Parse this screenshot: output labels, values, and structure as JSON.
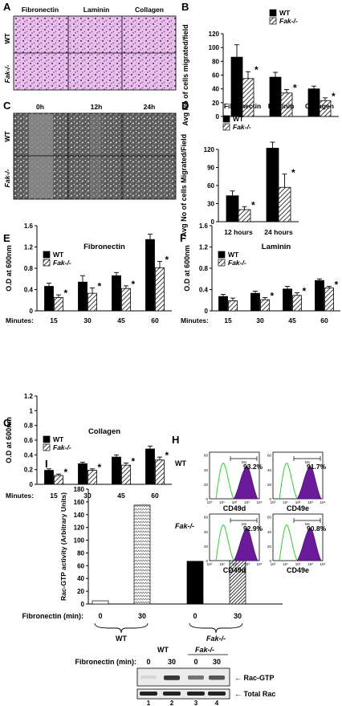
{
  "colors": {
    "wt": "#000000",
    "fak": "hatched",
    "transwell_stain": "#c77fd0",
    "flow_isotype": "#33cc33",
    "flow_stained": "#6a1a9a",
    "blot_bg": "#e8e8e8"
  },
  "panels": {
    "A": {
      "letter": "A",
      "columns": [
        "Fibronectin",
        "Laminin",
        "Collagen"
      ],
      "rows": [
        "WT",
        "Fak-/-"
      ]
    },
    "C": {
      "letter": "C",
      "columns": [
        "0h",
        "12h",
        "24h"
      ],
      "rows": [
        "WT",
        "Fak-/-"
      ]
    },
    "H": {
      "letter": "H",
      "rows": [
        "WT",
        "Fak-/-"
      ],
      "histograms": [
        {
          "pct": "93.2%",
          "marker": "CD49d",
          "gate": "M1"
        },
        {
          "pct": "91.7%",
          "marker": "CD49e",
          "gate": "M1"
        },
        {
          "pct": "92.9%",
          "marker": "CD49d",
          "gate": "M1"
        },
        {
          "pct": "90.8%",
          "marker": "CD49e",
          "gate": "M1"
        }
      ],
      "ticks_x": [
        "10⁰",
        "10¹",
        "10²",
        "10³",
        "10⁴"
      ],
      "ticks_y": [
        "0",
        "20",
        "40",
        "60"
      ]
    },
    "I_blot": {
      "fn_label": "Fibronectin (min):",
      "groups": [
        "WT",
        "Fak-/-"
      ],
      "times": [
        "0",
        "30",
        "0",
        "30"
      ],
      "lanes": [
        "1",
        "2",
        "3",
        "4"
      ],
      "bands": [
        "← Rac-GTP",
        "← Total Rac"
      ],
      "rac_gtp_intensity": [
        0.05,
        0.85,
        0.55,
        0.7
      ],
      "total_rac_intensity": [
        0.95,
        0.95,
        0.95,
        0.95
      ]
    }
  },
  "chart_data": [
    {
      "id": "B",
      "letter": "B",
      "type": "bar",
      "title": "",
      "ylabel": "Avg No of cells migrated/field",
      "categories": [
        "Fibronectin",
        "Laminin",
        "Collagen"
      ],
      "series": [
        {
          "name": "WT",
          "values": [
            86,
            57,
            40
          ],
          "errors": [
            18,
            7,
            4
          ]
        },
        {
          "name": "Fak-/-",
          "values": [
            55,
            34,
            23
          ],
          "errors": [
            10,
            5,
            4
          ]
        }
      ],
      "sig": [
        true,
        true,
        true
      ],
      "ylim": [
        0,
        120
      ],
      "yticks": [
        0,
        20,
        40,
        60,
        80,
        100,
        120
      ],
      "xprefix": "",
      "legend": "top-right"
    },
    {
      "id": "D",
      "letter": "D",
      "type": "bar",
      "title": "",
      "ylabel": "Avg No of cells Migrated/Field",
      "categories": [
        "12 hours",
        "24 hours"
      ],
      "series": [
        {
          "name": "WT",
          "values": [
            43,
            122
          ],
          "errors": [
            8,
            10
          ]
        },
        {
          "name": "Fak-/-",
          "values": [
            20,
            57
          ],
          "errors": [
            5,
            22
          ]
        }
      ],
      "sig": [
        true,
        true
      ],
      "ylim": [
        0,
        120
      ],
      "yticks": [
        0,
        30,
        60,
        90,
        120
      ],
      "xprefix": "",
      "legend": "top-left"
    },
    {
      "id": "E",
      "letter": "E",
      "type": "bar",
      "title": "Fibronectin",
      "ylabel": "O.D at 600nm",
      "categories": [
        "15",
        "30",
        "45",
        "60"
      ],
      "series": [
        {
          "name": "WT",
          "values": [
            0.46,
            0.54,
            0.66,
            1.34
          ],
          "errors": [
            0.06,
            0.12,
            0.06,
            0.1
          ]
        },
        {
          "name": "Fak-/-",
          "values": [
            0.25,
            0.33,
            0.42,
            0.81
          ],
          "errors": [
            0.05,
            0.1,
            0.05,
            0.12
          ]
        }
      ],
      "sig": [
        true,
        true,
        true,
        true
      ],
      "ylim": [
        0,
        1.6
      ],
      "yticks": [
        0,
        0.4,
        0.8,
        1.2,
        1.6
      ],
      "xprefix": "Minutes:",
      "legend": "top-left"
    },
    {
      "id": "F",
      "letter": "F",
      "type": "bar",
      "title": "Laminin",
      "ylabel": "O.D at 600nm",
      "categories": [
        "15",
        "30",
        "45",
        "60"
      ],
      "series": [
        {
          "name": "WT",
          "values": [
            0.27,
            0.33,
            0.41,
            0.57
          ],
          "errors": [
            0.04,
            0.04,
            0.05,
            0.03
          ]
        },
        {
          "name": "Fak-/-",
          "values": [
            0.19,
            0.21,
            0.29,
            0.43
          ],
          "errors": [
            0.05,
            0.04,
            0.05,
            0.03
          ]
        }
      ],
      "sig": [
        false,
        true,
        true,
        true
      ],
      "ylim": [
        0,
        1.6
      ],
      "yticks": [
        0,
        0.4,
        0.8,
        1.2,
        1.6
      ],
      "xprefix": "Minutes:",
      "legend": "top-left"
    },
    {
      "id": "G",
      "letter": "G",
      "type": "bar",
      "title": "Collagen",
      "ylabel": "O.D at 600nm",
      "categories": [
        "15",
        "30",
        "45",
        "60"
      ],
      "series": [
        {
          "name": "WT",
          "values": [
            0.19,
            0.28,
            0.37,
            0.48
          ],
          "errors": [
            0.02,
            0.02,
            0.03,
            0.04
          ]
        },
        {
          "name": "Fak-/-",
          "values": [
            0.12,
            0.19,
            0.26,
            0.33
          ],
          "errors": [
            0.02,
            0.02,
            0.03,
            0.04
          ]
        }
      ],
      "sig": [
        true,
        true,
        true,
        true
      ],
      "ylim": [
        0,
        1.2
      ],
      "yticks": [
        0,
        0.2,
        0.4,
        0.6,
        0.8,
        1.0,
        1.2
      ],
      "xprefix": "Minutes:",
      "legend": "top-left"
    },
    {
      "id": "I",
      "letter": "I",
      "type": "bar",
      "title": "",
      "ylabel": "Rac-GTP activity (Arbitrary Units)",
      "categories": [
        "WT 0",
        "WT 30",
        "Fak-/- 0",
        "Fak-/- 30"
      ],
      "values": [
        5,
        155,
        67,
        112
      ],
      "ylim": [
        0,
        180
      ],
      "yticks": [
        0,
        20,
        40,
        60,
        80,
        100,
        120,
        140,
        160,
        180
      ],
      "fn_label": "Fibronectin (min):",
      "times": [
        "0",
        "30",
        "0",
        "30"
      ],
      "groups": [
        "WT",
        "Fak-/-"
      ]
    }
  ]
}
